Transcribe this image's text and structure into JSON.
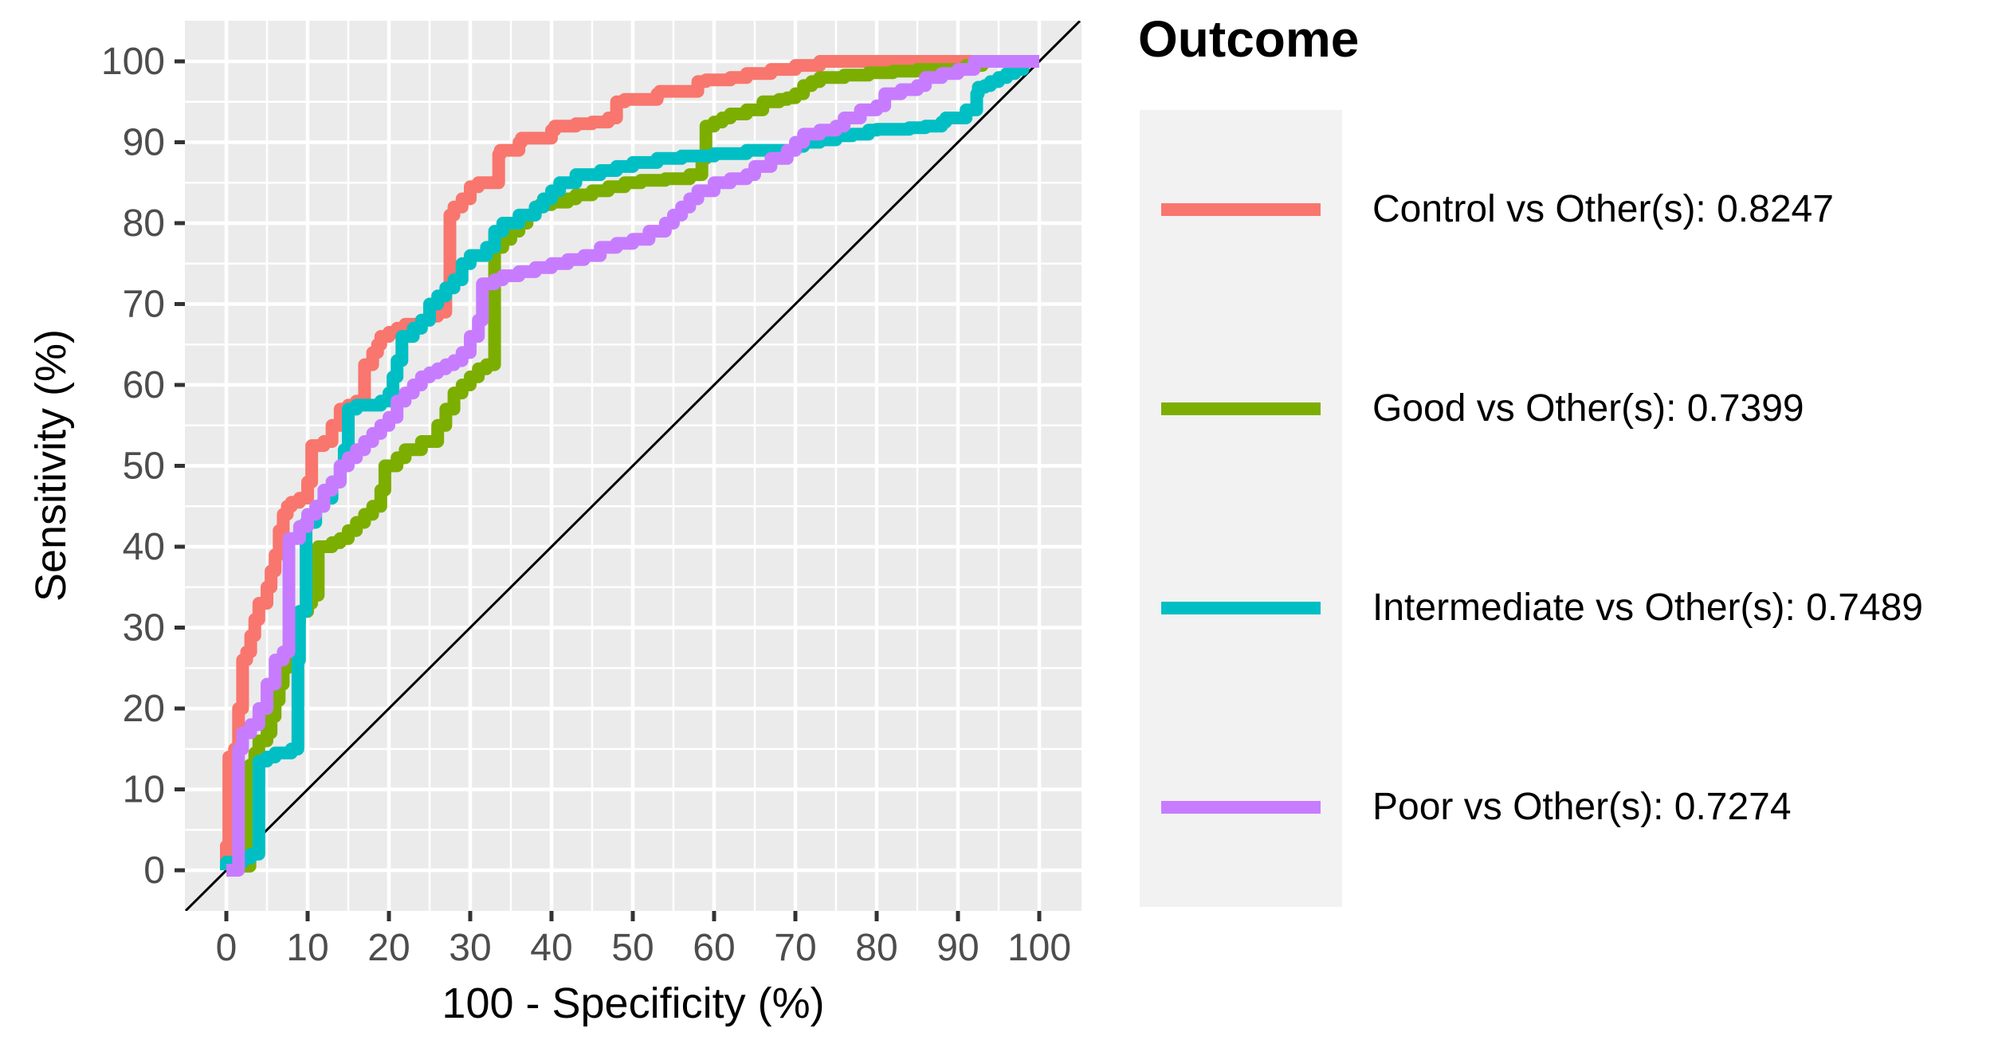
{
  "figure": {
    "background_color": "#FFFFFF",
    "panel_background_color": "#EBEBEB",
    "gridline_color": "#FFFFFF",
    "tick_color": "#333333",
    "tick_label_color": "#4D4D4D",
    "axis_title_color": "#000000",
    "legend_key_background_color": "#F2F2F2",
    "reference_line_color": "#000000"
  },
  "legend": {
    "title": "Outcome",
    "position": "right",
    "entries": [
      {
        "label": "Control vs Other(s): 0.8247",
        "color": "#F8766D"
      },
      {
        "label": "Good vs Other(s): 0.7399",
        "color": "#7CAE00"
      },
      {
        "label": "Intermediate vs Other(s): 0.7489",
        "color": "#00BFC4"
      },
      {
        "label": "Poor vs Other(s): 0.7274",
        "color": "#C77CFF"
      }
    ]
  },
  "chart_data": {
    "type": "line",
    "subtype": "roc-step-curves",
    "title": "",
    "xlabel": "100 - Specificity (%)",
    "ylabel": "Sensitivity (%)",
    "xlim": [
      -5,
      105
    ],
    "ylim": [
      -5,
      105
    ],
    "x_ticks": [
      0,
      10,
      20,
      30,
      40,
      50,
      60,
      70,
      80,
      90,
      100
    ],
    "y_ticks": [
      0,
      10,
      20,
      30,
      40,
      50,
      60,
      70,
      80,
      90,
      100
    ],
    "grid": {
      "major_every": 10,
      "minor_every": 5,
      "style": "white on grey panel"
    },
    "legend_position": "right",
    "reference_line": {
      "type": "diagonal",
      "from": [
        -5,
        -5
      ],
      "to": [
        105,
        105
      ]
    },
    "series": [
      {
        "name": "Control vs Other(s): 0.8247",
        "outcome": "Control",
        "auc": 0.8247,
        "color": "#F8766D",
        "points": [
          [
            0,
            0
          ],
          [
            0.3,
            3
          ],
          [
            0.3,
            13
          ],
          [
            1,
            14
          ],
          [
            1.5,
            15
          ],
          [
            2,
            20
          ],
          [
            2,
            25
          ],
          [
            2.5,
            26
          ],
          [
            3,
            27
          ],
          [
            3.5,
            29
          ],
          [
            4,
            31
          ],
          [
            5,
            33
          ],
          [
            5.5,
            35
          ],
          [
            6,
            37
          ],
          [
            6.5,
            39
          ],
          [
            7,
            42
          ],
          [
            7.5,
            44
          ],
          [
            8,
            45
          ],
          [
            9,
            45.5
          ],
          [
            10,
            46
          ],
          [
            10.5,
            48
          ],
          [
            10.5,
            52
          ],
          [
            12,
            52.5
          ],
          [
            13,
            53
          ],
          [
            14,
            55
          ],
          [
            15,
            57
          ],
          [
            16,
            57.5
          ],
          [
            17,
            58
          ],
          [
            17,
            61.5
          ],
          [
            18,
            62.5
          ],
          [
            18.6,
            64
          ],
          [
            19,
            65
          ],
          [
            20,
            66
          ],
          [
            21,
            66.5
          ],
          [
            22,
            67
          ],
          [
            24,
            67.5
          ],
          [
            25,
            68
          ],
          [
            26,
            68.5
          ],
          [
            27,
            69
          ],
          [
            27.5,
            72
          ],
          [
            27.5,
            80.5
          ],
          [
            28,
            81
          ],
          [
            29,
            82
          ],
          [
            30,
            83
          ],
          [
            31,
            84.5
          ],
          [
            33.5,
            85
          ],
          [
            33.7,
            88.5
          ],
          [
            36,
            89
          ],
          [
            36.3,
            90
          ],
          [
            40,
            90.5
          ],
          [
            40.4,
            91.5
          ],
          [
            43,
            92
          ],
          [
            45,
            92.3
          ],
          [
            47,
            92.5
          ],
          [
            48,
            93
          ],
          [
            49,
            95
          ],
          [
            53,
            95.3
          ],
          [
            53.3,
            96
          ],
          [
            58,
            96.3
          ],
          [
            59,
            97.5
          ],
          [
            62,
            97.7
          ],
          [
            64,
            98
          ],
          [
            67,
            98.5
          ],
          [
            70,
            99
          ],
          [
            73,
            99.5
          ],
          [
            75,
            100
          ],
          [
            100,
            100
          ]
        ]
      },
      {
        "name": "Good vs Other(s): 0.7399",
        "outcome": "Good",
        "auc": 0.7399,
        "color": "#7CAE00",
        "points": [
          [
            0,
            0
          ],
          [
            2.9,
            0.5
          ],
          [
            2.9,
            12
          ],
          [
            3.5,
            13
          ],
          [
            4,
            14.5
          ],
          [
            5,
            16
          ],
          [
            5.5,
            17
          ],
          [
            6,
            19
          ],
          [
            6.5,
            21
          ],
          [
            7,
            23
          ],
          [
            7.5,
            25
          ],
          [
            8,
            27
          ],
          [
            8.3,
            29
          ],
          [
            9,
            30.5
          ],
          [
            10,
            32
          ],
          [
            10.5,
            33
          ],
          [
            11.3,
            34
          ],
          [
            11.3,
            39.5
          ],
          [
            13,
            40
          ],
          [
            14,
            40.5
          ],
          [
            15,
            41
          ],
          [
            16,
            42
          ],
          [
            17,
            43
          ],
          [
            18,
            44
          ],
          [
            19,
            45
          ],
          [
            19.5,
            47
          ],
          [
            19.5,
            49.5
          ],
          [
            21,
            50
          ],
          [
            22,
            51
          ],
          [
            24,
            52
          ],
          [
            26,
            53
          ],
          [
            27,
            55
          ],
          [
            28,
            57
          ],
          [
            29,
            59
          ],
          [
            30,
            60
          ],
          [
            31,
            61
          ],
          [
            32,
            62
          ],
          [
            33,
            62.5
          ],
          [
            33,
            76
          ],
          [
            34,
            77
          ],
          [
            35,
            78
          ],
          [
            36,
            79
          ],
          [
            37,
            80
          ],
          [
            38,
            81
          ],
          [
            38.6,
            82
          ],
          [
            40,
            82.3
          ],
          [
            42,
            82.6
          ],
          [
            43,
            83
          ],
          [
            45,
            83.5
          ],
          [
            47,
            84
          ],
          [
            49,
            84.5
          ],
          [
            51,
            85
          ],
          [
            54,
            85.3
          ],
          [
            57,
            85.5
          ],
          [
            58.5,
            86
          ],
          [
            59,
            88
          ],
          [
            59,
            91.5
          ],
          [
            60,
            92
          ],
          [
            61,
            92.5
          ],
          [
            62,
            93
          ],
          [
            64,
            93.5
          ],
          [
            66,
            94
          ],
          [
            68,
            95
          ],
          [
            69,
            95.3
          ],
          [
            70,
            95.5
          ],
          [
            71,
            96
          ],
          [
            72,
            97
          ],
          [
            73,
            97.5
          ],
          [
            74,
            98
          ],
          [
            76,
            98
          ],
          [
            79,
            98.3
          ],
          [
            82,
            98.6
          ],
          [
            85,
            98.8
          ],
          [
            88,
            99
          ],
          [
            91,
            99
          ],
          [
            93,
            99.5
          ],
          [
            93.7,
            100
          ],
          [
            100,
            100
          ]
        ]
      },
      {
        "name": "Intermediate vs Other(s): 0.7489",
        "outcome": "Intermediate",
        "auc": 0.7489,
        "color": "#00BFC4",
        "points": [
          [
            0,
            0
          ],
          [
            2,
            1
          ],
          [
            3,
            1.5
          ],
          [
            4,
            2
          ],
          [
            4,
            6
          ],
          [
            4,
            12
          ],
          [
            5,
            13.5
          ],
          [
            6,
            14
          ],
          [
            8,
            14.5
          ],
          [
            8.8,
            15
          ],
          [
            8.8,
            22
          ],
          [
            9,
            26
          ],
          [
            9,
            30
          ],
          [
            9.8,
            32
          ],
          [
            9.8,
            42
          ],
          [
            11,
            43
          ],
          [
            12,
            45
          ],
          [
            13,
            46
          ],
          [
            14,
            48
          ],
          [
            14.5,
            50
          ],
          [
            15,
            52
          ],
          [
            15,
            56
          ],
          [
            16,
            57
          ],
          [
            19,
            57.5
          ],
          [
            20,
            58
          ],
          [
            20.5,
            59
          ],
          [
            21,
            61
          ],
          [
            21.6,
            63
          ],
          [
            21.6,
            65
          ],
          [
            23,
            66
          ],
          [
            24,
            67
          ],
          [
            25,
            68
          ],
          [
            26,
            70
          ],
          [
            27,
            71
          ],
          [
            28,
            72
          ],
          [
            29,
            73
          ],
          [
            30,
            75
          ],
          [
            32,
            76
          ],
          [
            33,
            77
          ],
          [
            34,
            79
          ],
          [
            36,
            80
          ],
          [
            38,
            81
          ],
          [
            39,
            82
          ],
          [
            40,
            83
          ],
          [
            41,
            84
          ],
          [
            43,
            85
          ],
          [
            46,
            86
          ],
          [
            48,
            86.5
          ],
          [
            50,
            87
          ],
          [
            53,
            87.5
          ],
          [
            56,
            88
          ],
          [
            60,
            88.3
          ],
          [
            64,
            88.6
          ],
          [
            67,
            89
          ],
          [
            70,
            89
          ],
          [
            71,
            89.5
          ],
          [
            73,
            90
          ],
          [
            75,
            90.3
          ],
          [
            77,
            90.8
          ],
          [
            79,
            91
          ],
          [
            80,
            91.5
          ],
          [
            84,
            91.6
          ],
          [
            86,
            91.8
          ],
          [
            88,
            92
          ],
          [
            88.5,
            92.5
          ],
          [
            91,
            93
          ],
          [
            92.3,
            94
          ],
          [
            92.5,
            96
          ],
          [
            93.3,
            96.8
          ],
          [
            94,
            97
          ],
          [
            95,
            97.5
          ],
          [
            96,
            98
          ],
          [
            97,
            98.5
          ],
          [
            98,
            99
          ],
          [
            99,
            100
          ],
          [
            100,
            100
          ]
        ]
      },
      {
        "name": "Poor vs Other(s): 0.7274",
        "outcome": "Poor",
        "auc": 0.7274,
        "color": "#C77CFF",
        "points": [
          [
            0,
            0
          ],
          [
            1.5,
            0
          ],
          [
            1.5,
            8
          ],
          [
            1.5,
            14
          ],
          [
            2,
            15
          ],
          [
            3,
            17
          ],
          [
            4,
            18
          ],
          [
            5,
            20
          ],
          [
            6,
            23
          ],
          [
            7,
            26
          ],
          [
            7.7,
            27
          ],
          [
            7.7,
            33
          ],
          [
            7.7,
            39
          ],
          [
            9,
            41
          ],
          [
            10,
            42.5
          ],
          [
            11,
            44
          ],
          [
            12,
            45
          ],
          [
            13,
            47
          ],
          [
            14,
            48
          ],
          [
            15,
            50
          ],
          [
            16,
            51
          ],
          [
            17,
            52
          ],
          [
            18,
            53
          ],
          [
            19,
            54
          ],
          [
            20,
            55
          ],
          [
            21,
            56
          ],
          [
            22,
            58
          ],
          [
            23,
            59
          ],
          [
            24,
            60
          ],
          [
            25,
            61
          ],
          [
            26,
            61.5
          ],
          [
            27,
            62
          ],
          [
            28,
            62.5
          ],
          [
            29,
            63
          ],
          [
            30,
            64
          ],
          [
            31,
            66
          ],
          [
            31.5,
            68
          ],
          [
            31.5,
            72
          ],
          [
            33,
            72.5
          ],
          [
            34,
            73
          ],
          [
            36,
            73.5
          ],
          [
            38,
            74
          ],
          [
            40,
            74.5
          ],
          [
            42,
            75
          ],
          [
            44,
            75.5
          ],
          [
            46,
            76
          ],
          [
            48,
            77
          ],
          [
            50,
            77.5
          ],
          [
            52,
            78
          ],
          [
            54,
            79
          ],
          [
            55,
            80
          ],
          [
            56,
            81
          ],
          [
            57,
            82
          ],
          [
            58,
            83
          ],
          [
            60,
            84
          ],
          [
            62,
            85
          ],
          [
            64,
            85.5
          ],
          [
            65,
            86
          ],
          [
            67,
            87
          ],
          [
            69,
            88
          ],
          [
            70,
            89
          ],
          [
            71,
            90
          ],
          [
            73,
            91
          ],
          [
            75,
            91.5
          ],
          [
            76,
            92
          ],
          [
            78,
            93
          ],
          [
            80,
            94
          ],
          [
            81,
            94.5
          ],
          [
            83,
            96
          ],
          [
            85,
            96.5
          ],
          [
            86,
            97
          ],
          [
            88,
            98
          ],
          [
            90,
            98.5
          ],
          [
            92,
            99
          ],
          [
            94,
            100
          ],
          [
            100,
            100
          ]
        ]
      }
    ]
  }
}
